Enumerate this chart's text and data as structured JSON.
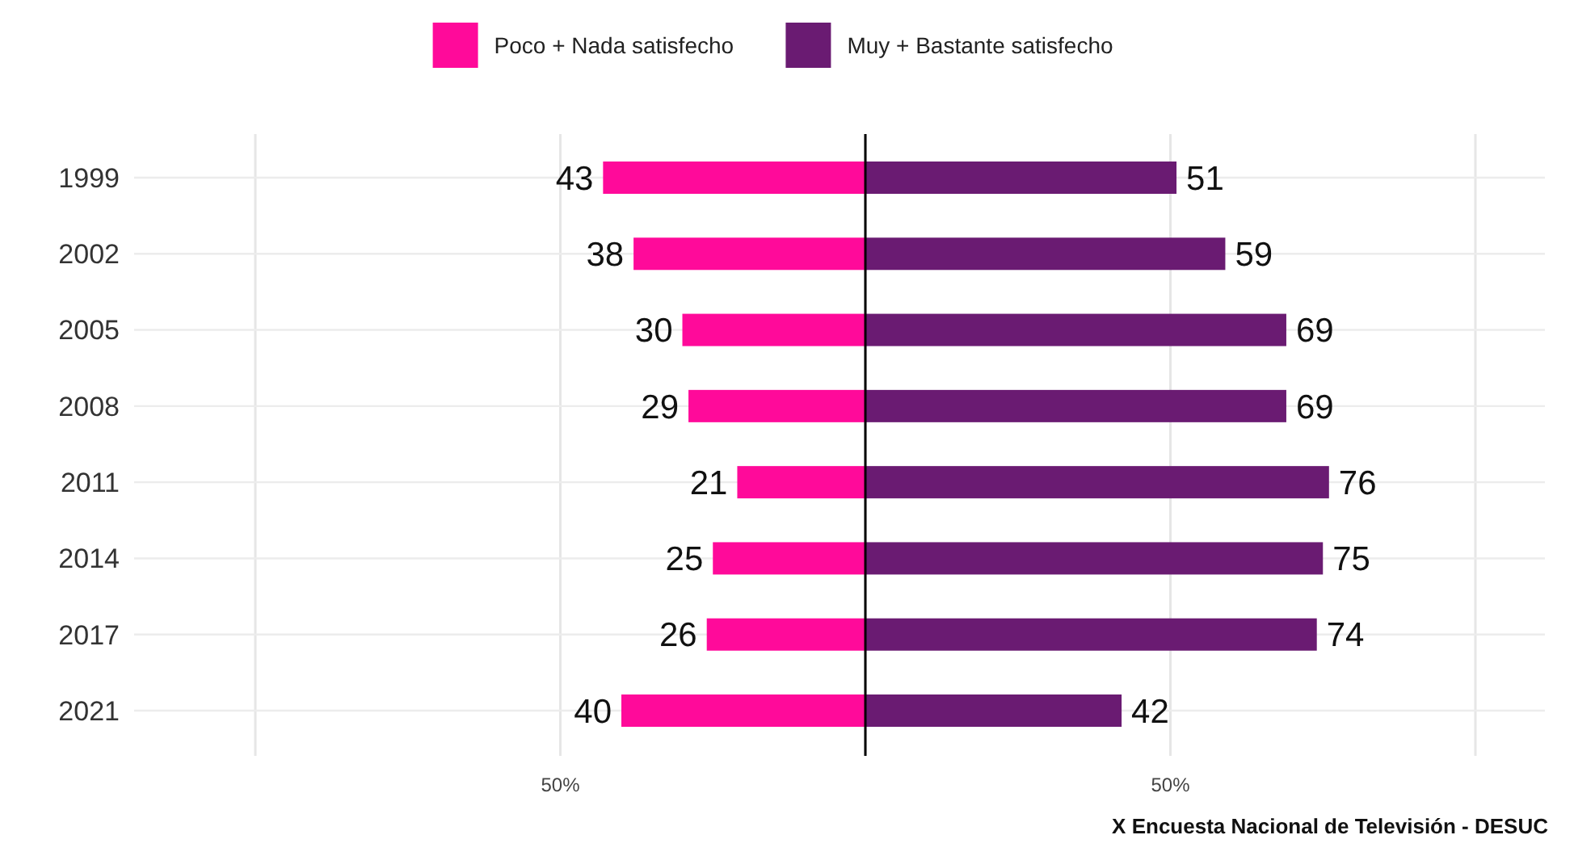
{
  "chart_data": {
    "type": "bar",
    "orientation": "horizontal",
    "categories": [
      "1999",
      "2002",
      "2005",
      "2008",
      "2011",
      "2014",
      "2017",
      "2021"
    ],
    "series": [
      {
        "name": "Poco + Nada satisfecho",
        "color": "#ff0a9a",
        "base": [
          -43,
          -38,
          -30,
          -29,
          -21,
          -25,
          -26,
          -40
        ],
        "values": [
          43,
          38,
          30,
          29,
          21,
          25,
          26,
          40
        ],
        "value_labels": [
          "43",
          "38",
          "30",
          "29",
          "21",
          "25",
          "26",
          "40"
        ]
      },
      {
        "name": "Muy + Bastante satisfecho",
        "color": "#6a1b72",
        "values": [
          51,
          59,
          69,
          69,
          76,
          75,
          74,
          42
        ],
        "value_labels": [
          "51",
          "59",
          "69",
          "69",
          "76",
          "75",
          "74",
          "42"
        ]
      }
    ],
    "xlim": [
      -100,
      100
    ],
    "xticks": [
      {
        "value": -100,
        "label": null
      },
      {
        "value": -50,
        "label": "50%"
      },
      {
        "value": 0,
        "label": null
      },
      {
        "value": 50,
        "label": "50%"
      },
      {
        "value": 100,
        "label": null
      }
    ],
    "ref_lines": [
      {
        "axis": "x",
        "value": 0,
        "color": "#000000"
      }
    ],
    "grid": "x",
    "legend": "top",
    "annotations": [
      "X Encuesta Nacional de Televisión - DESUC"
    ]
  }
}
